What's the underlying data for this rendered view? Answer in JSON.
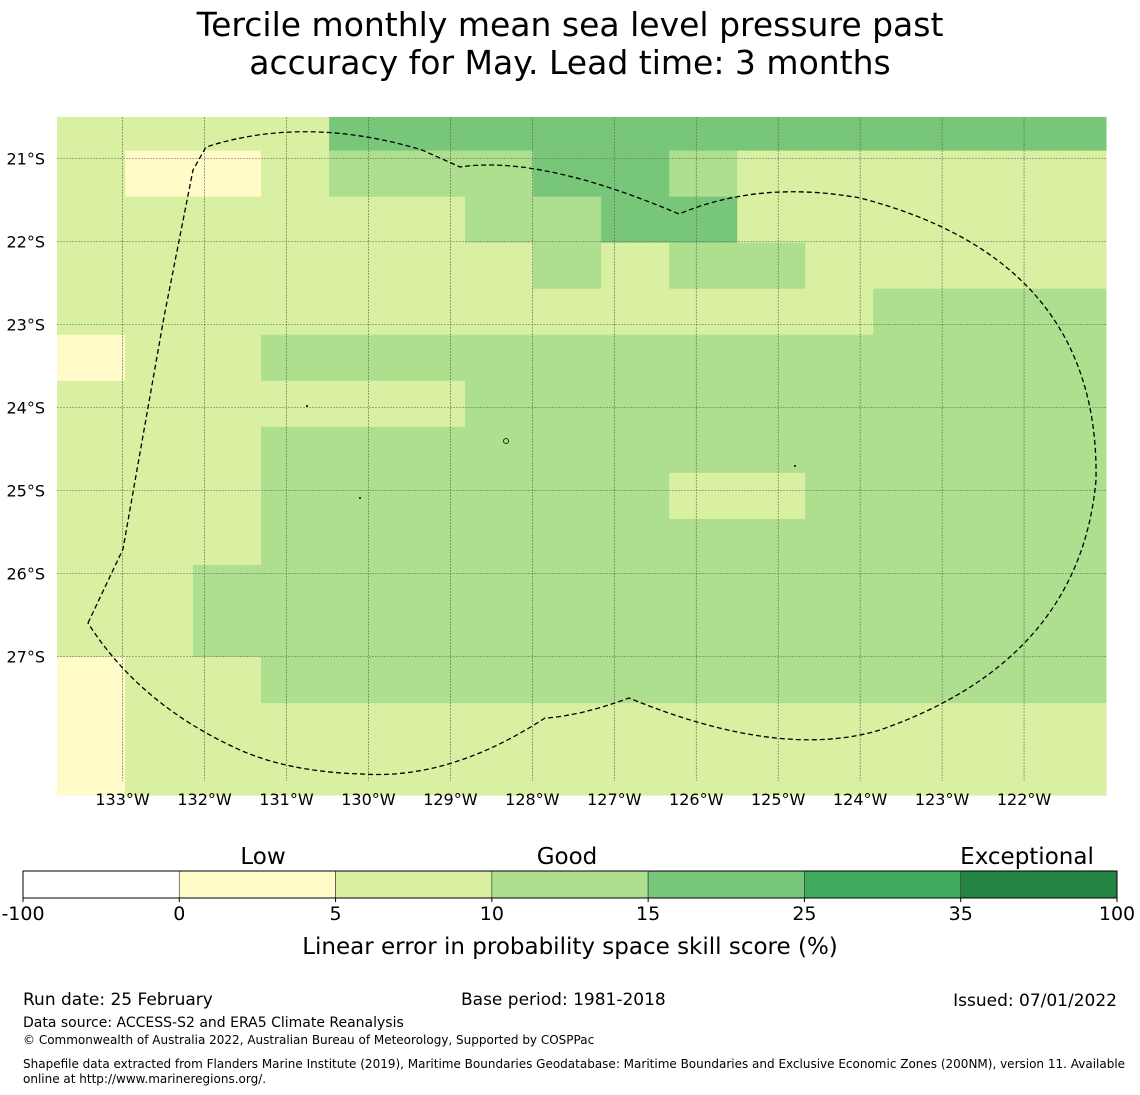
{
  "title": {
    "line1": "Tercile monthly mean sea level pressure past",
    "line2": "accuracy for May. Lead time: 3 months"
  },
  "map": {
    "lon_range": [
      -133.8,
      -121.0
    ],
    "lat_range": [
      -28.5,
      -20.5
    ],
    "lat_ticks": [
      {
        "value": -21,
        "label": "21°S"
      },
      {
        "value": -22,
        "label": "22°S"
      },
      {
        "value": -23,
        "label": "23°S"
      },
      {
        "value": -24,
        "label": "24°S"
      },
      {
        "value": -25,
        "label": "25°S"
      },
      {
        "value": -26,
        "label": "26°S"
      },
      {
        "value": -27,
        "label": "27°S"
      }
    ],
    "lon_ticks": [
      {
        "value": -133,
        "label": "133°W"
      },
      {
        "value": -132,
        "label": "132°W"
      },
      {
        "value": -131,
        "label": "131°W"
      },
      {
        "value": -130,
        "label": "130°W"
      },
      {
        "value": -129,
        "label": "129°W"
      },
      {
        "value": -128,
        "label": "128°W"
      },
      {
        "value": -127,
        "label": "127°W"
      },
      {
        "value": -126,
        "label": "126°W"
      },
      {
        "value": -125,
        "label": "125°W"
      },
      {
        "value": -124,
        "label": "124°W"
      },
      {
        "value": -123,
        "label": "123°W"
      },
      {
        "value": -122,
        "label": "122°W"
      }
    ],
    "category_colors": {
      "1": "#fffcc9",
      "2": "#d9efa2",
      "3": "#addf8e",
      "4": "#78c679"
    },
    "grid": [
      "2222444444444",
      "2112333443222",
      "2222223344222",
      "2222222323322",
      "2222222222223",
      "1223333333333",
      "2222223333333",
      "2223333333333",
      "2223333332233",
      "2223333333333",
      "2233333333333",
      "2233333333333",
      "1223333333333",
      "1222222222222",
      "1222222222222",
      "1222222222222"
    ]
  },
  "colorbar": {
    "categories": [
      "Low",
      "Good",
      "Exceptional"
    ],
    "ticks": [
      "-100",
      "0",
      "5",
      "10",
      "15",
      "25",
      "35",
      "100"
    ],
    "colors": [
      "#ffffff",
      "#fffcc9",
      "#d9efa2",
      "#addf8e",
      "#78c679",
      "#41ab5d",
      "#238443"
    ],
    "label": "Linear error in probability space skill score (%)"
  },
  "footer": {
    "run_date": "Run date: 25 February",
    "base_period": "Base period: 1981-2018",
    "issued": "Issued: 07/01/2022",
    "data_source": "Data source: ACCESS-S2 and ERA5 Climate Reanalysis",
    "copyright": "© Commonwealth of Australia 2022, Australian Bureau of Meteorology, Supported by COSPPac",
    "shapefile": "Shapefile data extracted from Flanders Marine Institute (2019), Maritime Boundaries Geodatabase: Maritime Boundaries and Exclusive Economic Zones (200NM), version 11. Available online at http://www.marineregions.org/."
  }
}
